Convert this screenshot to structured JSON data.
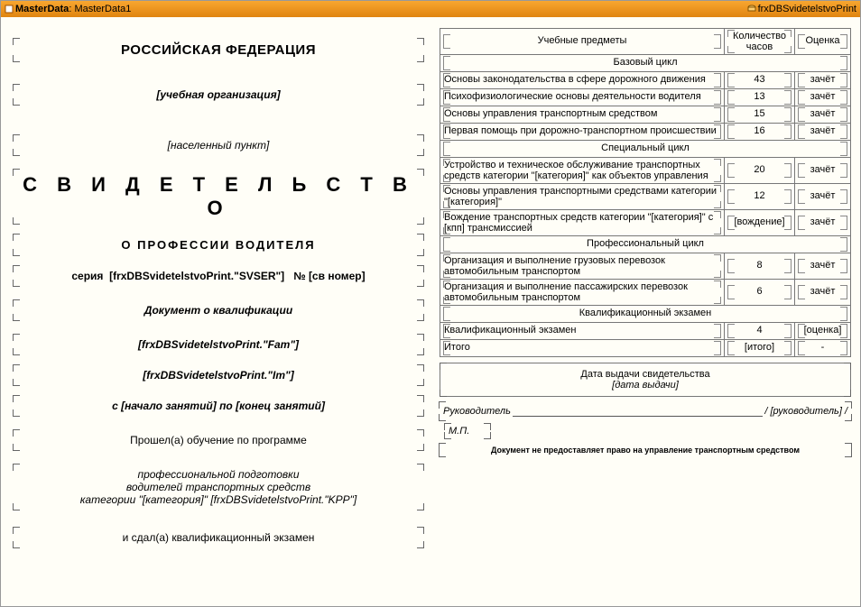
{
  "titlebar": {
    "band_label_prefix": "MasterData",
    "band_name": "MasterData1",
    "dataset": "frxDBSvidetelstvoPrint"
  },
  "left": {
    "country": "РОССИЙСКАЯ ФЕДЕРАЦИЯ",
    "org": "[учебная организация]",
    "city": "[населенный пункт]",
    "cert_title": "С В И Д Е Т Е Л Ь С Т В О",
    "cert_sub": "О  ПРОФЕССИИ  ВОДИТЕЛЯ",
    "serial_prefix": "серия",
    "serial_field": "[frxDBSvidetelstvoPrint.\"SVSER\"]",
    "num_sign": "№",
    "num_field": "[св номер]",
    "doc_qual": "Документ о квалификации",
    "fam": "[frxDBSvidetelstvoPrint.\"Fam\"]",
    "im": "[frxDBSvidetelstvoPrint.\"Im\"]",
    "period": "с [начало занятий] по [конец занятий]",
    "line1": "Прошел(а) обучение по программе",
    "line2a": "профессиональной подготовки",
    "line2b": "водителей транспортных средств",
    "line2c": "категории \"[категория]\" [frxDBSvidetelstvoPrint.\"KPP\"]",
    "line3": "и сдал(а) квалификационный экзамен"
  },
  "right": {
    "head_subject": "Учебные предметы",
    "head_hours": "Количество часов",
    "head_grade": "Оценка",
    "sections": [
      {
        "title": "Базовый цикл",
        "rows": [
          {
            "s": "Основы законодательства в сфере дорожного движения",
            "h": "43",
            "g": "зачёт"
          },
          {
            "s": "Психофизиологические основы деятельности водителя",
            "h": "13",
            "g": "зачёт"
          },
          {
            "s": "Основы управления транспортным средством",
            "h": "15",
            "g": "зачёт"
          },
          {
            "s": "Первая помощь при дорожно-транспортном происшествии",
            "h": "16",
            "g": "зачёт"
          }
        ]
      },
      {
        "title": "Специальный цикл",
        "rows": [
          {
            "s": "Устройство и техническое обслуживание транспортных средств категории \"[катего­рия]\" как объектов управления",
            "h": "20",
            "g": "зачёт"
          },
          {
            "s": "Основы управления транспортными средствами категории \"[категория]\"",
            "h": "12",
            "g": "зачёт"
          },
          {
            "s": "Вождение транспортных средств категории \"[категория]\" с [кпп] трансмиссией",
            "h": "[вождение]",
            "g": "зачёт"
          }
        ]
      },
      {
        "title": "Профессиональный цикл",
        "rows": [
          {
            "s": "Организация и выполнение грузовых перевозок автомобильным транспортом",
            "h": "8",
            "g": "зачёт"
          },
          {
            "s": "Организация и выполнение пассажирских перевозок автомобильным транспортом",
            "h": "6",
            "g": "зачёт"
          }
        ]
      },
      {
        "title": "Квалификационный экзамен",
        "rows": [
          {
            "s": "Квалификационный экзамен",
            "h": "4",
            "g": "[оценка]"
          },
          {
            "s": "Итого",
            "h": "[итого]",
            "g": "-"
          }
        ]
      }
    ],
    "issue_title": "Дата выдачи свидетельства",
    "issue_field": "[дата выдачи]",
    "sig_left": "Руководитель",
    "sig_right": "/ [руководитель] /",
    "mp": "М.П.",
    "disclaimer": "Документ не предоставляет право на управление транспортным средством"
  }
}
